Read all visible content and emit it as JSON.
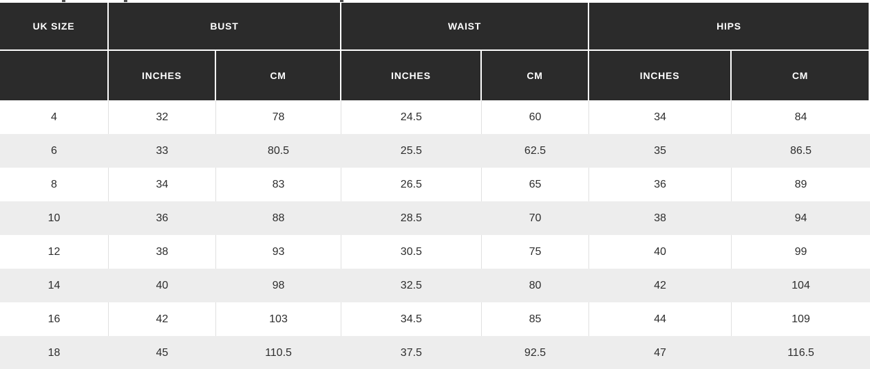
{
  "table": {
    "group_headers": [
      "UK SIZE",
      "BUST",
      "WAIST",
      "HIPS"
    ],
    "sub_headers": [
      "INCHES",
      "CM",
      "INCHES",
      "CM",
      "INCHES",
      "CM"
    ],
    "rows": [
      [
        "4",
        "32",
        "78",
        "24.5",
        "60",
        "34",
        "84"
      ],
      [
        "6",
        "33",
        "80.5",
        "25.5",
        "62.5",
        "35",
        "86.5"
      ],
      [
        "8",
        "34",
        "83",
        "26.5",
        "65",
        "36",
        "89"
      ],
      [
        "10",
        "36",
        "88",
        "28.5",
        "70",
        "38",
        "94"
      ],
      [
        "12",
        "38",
        "93",
        "30.5",
        "75",
        "40",
        "99"
      ],
      [
        "14",
        "40",
        "98",
        "32.5",
        "80",
        "42",
        "104"
      ],
      [
        "16",
        "42",
        "103",
        "34.5",
        "85",
        "44",
        "109"
      ],
      [
        "18",
        "45",
        "110.5",
        "37.5",
        "92.5",
        "47",
        "116.5"
      ]
    ],
    "colors": {
      "header_bg": "#2b2b2b",
      "header_text": "#ffffff",
      "row_bg": "#ffffff",
      "row_alt_bg": "#ededed",
      "body_text": "#2d2d2d",
      "divider": "#e0e0e0"
    }
  }
}
